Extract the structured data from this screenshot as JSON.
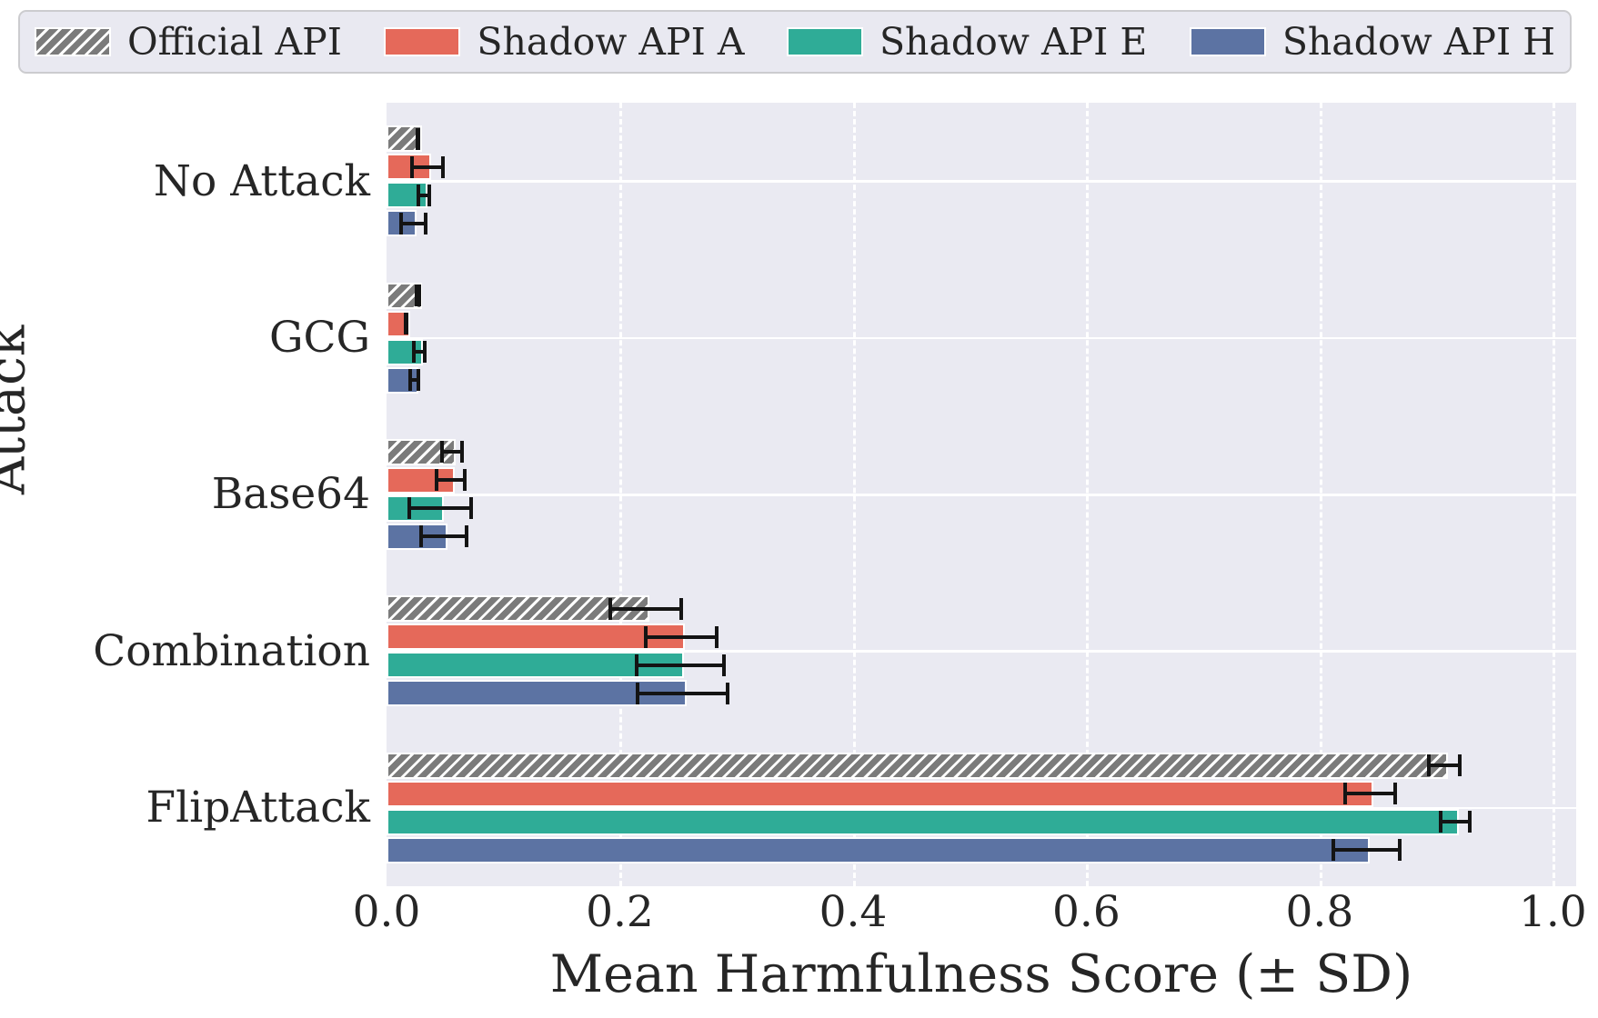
{
  "colors": {
    "figure_background": "#ffffff",
    "plot_background": "#eaeaf2",
    "grid": "#ffffff",
    "text": "#262626",
    "errorbar": "#141414",
    "legend_background": "#e9e9f1",
    "legend_border": "#cccccf"
  },
  "chart_data": {
    "type": "bar",
    "orientation": "horizontal",
    "title": "",
    "xlabel": "Mean Harmfulness Score (± SD)",
    "ylabel": "Attack",
    "categories": [
      "No Attack",
      "GCG",
      "Base64",
      "Combination",
      "FlipAttack"
    ],
    "series": [
      {
        "name": "Official API",
        "color": "#7b7b7b",
        "hatch": "///",
        "values": [
          0.027,
          0.027,
          0.056,
          0.222,
          0.907
        ],
        "sd": [
          0.002,
          0.003,
          0.01,
          0.032,
          0.015
        ]
      },
      {
        "name": "Shadow API A",
        "color": "#e5695a",
        "hatch": null,
        "values": [
          0.035,
          0.017,
          0.055,
          0.253,
          0.843
        ],
        "sd": [
          0.015,
          0.002,
          0.014,
          0.032,
          0.023
        ]
      },
      {
        "name": "Shadow API E",
        "color": "#2fac97",
        "hatch": null,
        "values": [
          0.032,
          0.028,
          0.046,
          0.252,
          0.916
        ],
        "sd": [
          0.006,
          0.006,
          0.028,
          0.039,
          0.014
        ]
      },
      {
        "name": "Shadow API H",
        "color": "#5c73a3",
        "hatch": null,
        "values": [
          0.023,
          0.024,
          0.049,
          0.254,
          0.84
        ],
        "sd": [
          0.012,
          0.005,
          0.021,
          0.04,
          0.03
        ]
      }
    ],
    "error_bars": "± SD",
    "xlim": [
      0,
      1.02
    ],
    "xticks": {
      "values": [
        0.0,
        0.2,
        0.4,
        0.6,
        0.8,
        1.0
      ],
      "labels": [
        "0.0",
        "0.2",
        "0.4",
        "0.6",
        "0.8",
        "1.0"
      ]
    },
    "grid": true,
    "legend_position": "top"
  }
}
